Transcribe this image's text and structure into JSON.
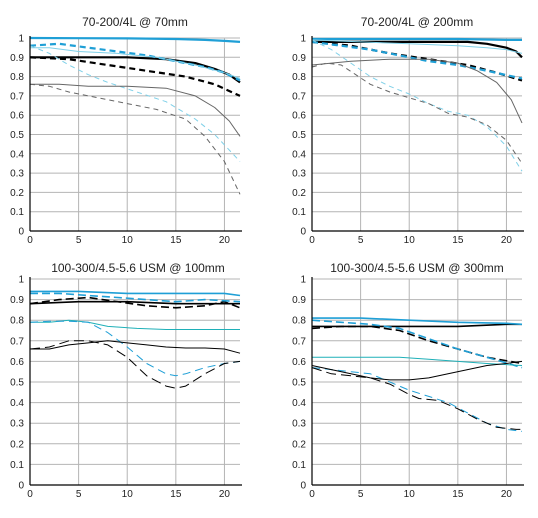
{
  "chart_data": [
    {
      "type": "line",
      "title": "70-200/4L @ 70mm",
      "xlim": [
        0,
        21.6
      ],
      "ylim": [
        0,
        1
      ],
      "xticks": [
        "0",
        "5",
        "10",
        "15",
        "20"
      ],
      "yticks": [
        "0",
        "0.1",
        "0.2",
        "0.3",
        "0.4",
        "0.5",
        "0.6",
        "0.7",
        "0.8",
        "0.9",
        "1"
      ],
      "grid": true,
      "series": [
        {
          "color": "#000000",
          "width": 2.2,
          "dash": "",
          "x": [
            0,
            5,
            10,
            14,
            17,
            19,
            20.5,
            21.6
          ],
          "y": [
            0.9,
            0.9,
            0.9,
            0.89,
            0.87,
            0.84,
            0.81,
            0.77
          ]
        },
        {
          "color": "#000000",
          "width": 2.2,
          "dash": "6,4",
          "x": [
            0,
            4,
            8,
            12,
            16,
            19,
            21.6
          ],
          "y": [
            0.9,
            0.89,
            0.86,
            0.83,
            0.8,
            0.76,
            0.7
          ]
        },
        {
          "color": "#1f9fd6",
          "width": 2.2,
          "dash": "",
          "x": [
            0,
            5,
            10,
            15,
            18,
            20,
            21.6
          ],
          "y": [
            1.0,
            0.999,
            0.998,
            0.995,
            0.99,
            0.985,
            0.98
          ]
        },
        {
          "color": "#1f9fd6",
          "width": 2.2,
          "dash": "6,4",
          "x": [
            0,
            3,
            6,
            9,
            12,
            15,
            18,
            20,
            21.6
          ],
          "y": [
            0.96,
            0.97,
            0.95,
            0.93,
            0.91,
            0.88,
            0.85,
            0.82,
            0.78
          ]
        },
        {
          "color": "#7fd0e8",
          "width": 1,
          "dash": "",
          "x": [
            0,
            2,
            5,
            9,
            13,
            17,
            20,
            21.6
          ],
          "y": [
            0.95,
            0.95,
            0.93,
            0.92,
            0.9,
            0.86,
            0.82,
            0.79
          ]
        },
        {
          "color": "#7fd0e8",
          "width": 1,
          "dash": "5,4",
          "x": [
            0,
            2,
            4,
            6,
            8,
            11,
            14,
            17,
            19,
            21.6
          ],
          "y": [
            0.96,
            0.92,
            0.86,
            0.81,
            0.77,
            0.72,
            0.67,
            0.58,
            0.5,
            0.36
          ]
        },
        {
          "color": "#666666",
          "width": 1,
          "dash": "",
          "x": [
            0,
            3,
            6,
            10,
            14,
            17,
            19,
            20.5,
            21.6
          ],
          "y": [
            0.76,
            0.76,
            0.75,
            0.75,
            0.74,
            0.7,
            0.64,
            0.57,
            0.49
          ]
        },
        {
          "color": "#666666",
          "width": 1,
          "dash": "5,4",
          "x": [
            0,
            2,
            4,
            7,
            10,
            13,
            16,
            18,
            20,
            21.6
          ],
          "y": [
            0.76,
            0.75,
            0.72,
            0.69,
            0.66,
            0.63,
            0.58,
            0.49,
            0.36,
            0.19
          ]
        }
      ]
    },
    {
      "type": "line",
      "title": "70-200/4L @ 200mm",
      "xlim": [
        0,
        21.6
      ],
      "ylim": [
        0,
        1
      ],
      "xticks": [
        "0",
        "5",
        "10",
        "15",
        "20"
      ],
      "yticks": [
        "0",
        "0.1",
        "0.2",
        "0.3",
        "0.4",
        "0.5",
        "0.6",
        "0.7",
        "0.8",
        "0.9",
        "1"
      ],
      "grid": true,
      "series": [
        {
          "color": "#000000",
          "width": 2.2,
          "dash": "",
          "x": [
            0,
            4,
            8,
            12,
            16,
            18,
            20,
            21,
            21.6
          ],
          "y": [
            0.98,
            0.98,
            0.98,
            0.98,
            0.98,
            0.97,
            0.95,
            0.93,
            0.9
          ]
        },
        {
          "color": "#000000",
          "width": 2.2,
          "dash": "6,4",
          "x": [
            0,
            4,
            8,
            12,
            16,
            19,
            21.6
          ],
          "y": [
            0.98,
            0.96,
            0.92,
            0.89,
            0.86,
            0.82,
            0.78
          ]
        },
        {
          "color": "#1f9fd6",
          "width": 2.2,
          "dash": "",
          "x": [
            0,
            5,
            10,
            15,
            20,
            21.6
          ],
          "y": [
            0.995,
            0.995,
            0.995,
            0.995,
            0.99,
            0.99
          ]
        },
        {
          "color": "#1f9fd6",
          "width": 2.2,
          "dash": "6,4",
          "x": [
            0,
            3,
            6,
            9,
            12,
            15,
            18,
            21.6
          ],
          "y": [
            0.98,
            0.96,
            0.94,
            0.91,
            0.88,
            0.86,
            0.83,
            0.79
          ]
        },
        {
          "color": "#7fd0e8",
          "width": 1,
          "dash": "",
          "x": [
            0,
            5,
            10,
            15,
            18,
            20,
            21.6
          ],
          "y": [
            0.99,
            0.98,
            0.97,
            0.96,
            0.95,
            0.94,
            0.92
          ]
        },
        {
          "color": "#7fd0e8",
          "width": 1,
          "dash": "5,4",
          "x": [
            0,
            2,
            4,
            6,
            8,
            10,
            12,
            14,
            16,
            18,
            20,
            21.6
          ],
          "y": [
            0.99,
            0.94,
            0.87,
            0.8,
            0.75,
            0.71,
            0.66,
            0.62,
            0.6,
            0.54,
            0.44,
            0.31
          ]
        },
        {
          "color": "#666666",
          "width": 1,
          "dash": "",
          "x": [
            0,
            4,
            8,
            12,
            15,
            17,
            19,
            20.5,
            21.6
          ],
          "y": [
            0.86,
            0.88,
            0.89,
            0.89,
            0.87,
            0.83,
            0.77,
            0.68,
            0.56
          ]
        },
        {
          "color": "#666666",
          "width": 1,
          "dash": "5,4",
          "x": [
            0,
            1.5,
            3,
            4.5,
            6,
            8,
            10,
            12,
            14,
            16,
            18,
            20,
            21.6
          ],
          "y": [
            0.85,
            0.87,
            0.86,
            0.81,
            0.76,
            0.72,
            0.69,
            0.66,
            0.61,
            0.59,
            0.55,
            0.47,
            0.35
          ]
        }
      ]
    },
    {
      "type": "line",
      "title": "100-300/4.5-5.6 USM @ 100mm",
      "xlim": [
        0,
        21.6
      ],
      "ylim": [
        0,
        1
      ],
      "xticks": [
        "0",
        "5",
        "10",
        "15",
        "20"
      ],
      "yticks": [
        "0",
        "0.1",
        "0.2",
        "0.3",
        "0.4",
        "0.5",
        "0.6",
        "0.7",
        "0.8",
        "0.9",
        "1"
      ],
      "grid": true,
      "series": [
        {
          "color": "#000000",
          "width": 1.6,
          "dash": "",
          "x": [
            0,
            5,
            10,
            15,
            20,
            21.6
          ],
          "y": [
            0.88,
            0.89,
            0.89,
            0.88,
            0.88,
            0.88
          ]
        },
        {
          "color": "#000000",
          "width": 1.6,
          "dash": "8,4",
          "x": [
            0,
            3,
            6,
            9,
            12,
            15,
            18,
            20,
            21.6
          ],
          "y": [
            0.88,
            0.9,
            0.91,
            0.89,
            0.87,
            0.86,
            0.87,
            0.89,
            0.86
          ]
        },
        {
          "color": "#1f9fd6",
          "width": 1.6,
          "dash": "",
          "x": [
            0,
            5,
            10,
            15,
            20,
            21.6
          ],
          "y": [
            0.94,
            0.94,
            0.93,
            0.93,
            0.93,
            0.92
          ]
        },
        {
          "color": "#1f9fd6",
          "width": 1.6,
          "dash": "8,4",
          "x": [
            0,
            3,
            6,
            9,
            12,
            15,
            18,
            21.6
          ],
          "y": [
            0.93,
            0.93,
            0.92,
            0.91,
            0.9,
            0.89,
            0.9,
            0.89
          ]
        },
        {
          "color": "#1fb0b8",
          "width": 1,
          "dash": "",
          "x": [
            0,
            2,
            4,
            6,
            8,
            11,
            14,
            17,
            20,
            21.6
          ],
          "y": [
            0.79,
            0.79,
            0.8,
            0.79,
            0.77,
            0.76,
            0.755,
            0.755,
            0.755,
            0.755
          ]
        },
        {
          "color": "#1f9fd6",
          "width": 1,
          "dash": "8,5",
          "x": [
            0,
            2,
            4,
            6,
            8,
            10,
            12,
            14,
            15,
            16,
            18,
            20,
            21.6
          ],
          "y": [
            0.79,
            0.795,
            0.795,
            0.79,
            0.74,
            0.67,
            0.59,
            0.54,
            0.53,
            0.54,
            0.57,
            0.59,
            0.6
          ]
        },
        {
          "color": "#000000",
          "width": 1,
          "dash": "",
          "x": [
            0,
            2,
            4,
            6,
            8,
            10,
            12,
            14,
            16,
            18,
            20,
            21.6
          ],
          "y": [
            0.66,
            0.66,
            0.68,
            0.69,
            0.7,
            0.69,
            0.68,
            0.67,
            0.665,
            0.665,
            0.66,
            0.64
          ]
        },
        {
          "color": "#000000",
          "width": 1,
          "dash": "10,5",
          "x": [
            0,
            2,
            4,
            6,
            8,
            10,
            12,
            14,
            15,
            16,
            18,
            20,
            21.6
          ],
          "y": [
            0.66,
            0.67,
            0.7,
            0.7,
            0.68,
            0.62,
            0.53,
            0.48,
            0.47,
            0.48,
            0.54,
            0.59,
            0.6
          ]
        }
      ]
    },
    {
      "type": "line",
      "title": "100-300/4.5-5.6 USM @ 300mm",
      "xlim": [
        0,
        21.6
      ],
      "ylim": [
        0,
        1
      ],
      "xticks": [
        "0",
        "5",
        "10",
        "15",
        "20"
      ],
      "yticks": [
        "0",
        "0.1",
        "0.2",
        "0.3",
        "0.4",
        "0.5",
        "0.6",
        "0.7",
        "0.8",
        "0.9",
        "1"
      ],
      "grid": true,
      "series": [
        {
          "color": "#000000",
          "width": 1.6,
          "dash": "",
          "x": [
            0,
            5,
            10,
            15,
            20,
            21.6
          ],
          "y": [
            0.77,
            0.77,
            0.77,
            0.77,
            0.78,
            0.78
          ]
        },
        {
          "color": "#000000",
          "width": 1.6,
          "dash": "8,4",
          "x": [
            0,
            3,
            6,
            9,
            12,
            15,
            18,
            21.6
          ],
          "y": [
            0.76,
            0.77,
            0.77,
            0.75,
            0.7,
            0.66,
            0.62,
            0.59
          ]
        },
        {
          "color": "#1f9fd6",
          "width": 1.6,
          "dash": "",
          "x": [
            0,
            5,
            10,
            15,
            20,
            21.6
          ],
          "y": [
            0.81,
            0.81,
            0.8,
            0.79,
            0.785,
            0.78
          ]
        },
        {
          "color": "#1f9fd6",
          "width": 1.6,
          "dash": "8,4",
          "x": [
            0,
            3,
            6,
            9,
            12,
            15,
            18,
            21.6
          ],
          "y": [
            0.8,
            0.79,
            0.78,
            0.76,
            0.71,
            0.66,
            0.62,
            0.57
          ]
        },
        {
          "color": "#1fb0b8",
          "width": 1,
          "dash": "",
          "x": [
            0,
            3,
            6,
            9,
            12,
            15,
            18,
            21.6
          ],
          "y": [
            0.62,
            0.62,
            0.62,
            0.62,
            0.61,
            0.6,
            0.59,
            0.58
          ]
        },
        {
          "color": "#1f9fd6",
          "width": 1,
          "dash": "8,5",
          "x": [
            0,
            2,
            4,
            6,
            8,
            10,
            12,
            14,
            16,
            18,
            20,
            21.6
          ],
          "y": [
            0.57,
            0.56,
            0.55,
            0.54,
            0.5,
            0.46,
            0.43,
            0.4,
            0.35,
            0.3,
            0.27,
            0.26
          ]
        },
        {
          "color": "#000000",
          "width": 1,
          "dash": "",
          "x": [
            0,
            2,
            4,
            6,
            8,
            10,
            12,
            14,
            16,
            18,
            20,
            21.6
          ],
          "y": [
            0.58,
            0.56,
            0.54,
            0.52,
            0.51,
            0.51,
            0.52,
            0.54,
            0.56,
            0.58,
            0.59,
            0.6
          ]
        },
        {
          "color": "#000000",
          "width": 1,
          "dash": "10,5",
          "x": [
            0,
            2,
            4,
            6,
            8,
            10,
            11,
            13,
            15,
            17,
            19,
            21,
            21.6
          ],
          "y": [
            0.57,
            0.54,
            0.53,
            0.52,
            0.49,
            0.44,
            0.42,
            0.41,
            0.37,
            0.32,
            0.28,
            0.27,
            0.27
          ]
        }
      ]
    }
  ]
}
